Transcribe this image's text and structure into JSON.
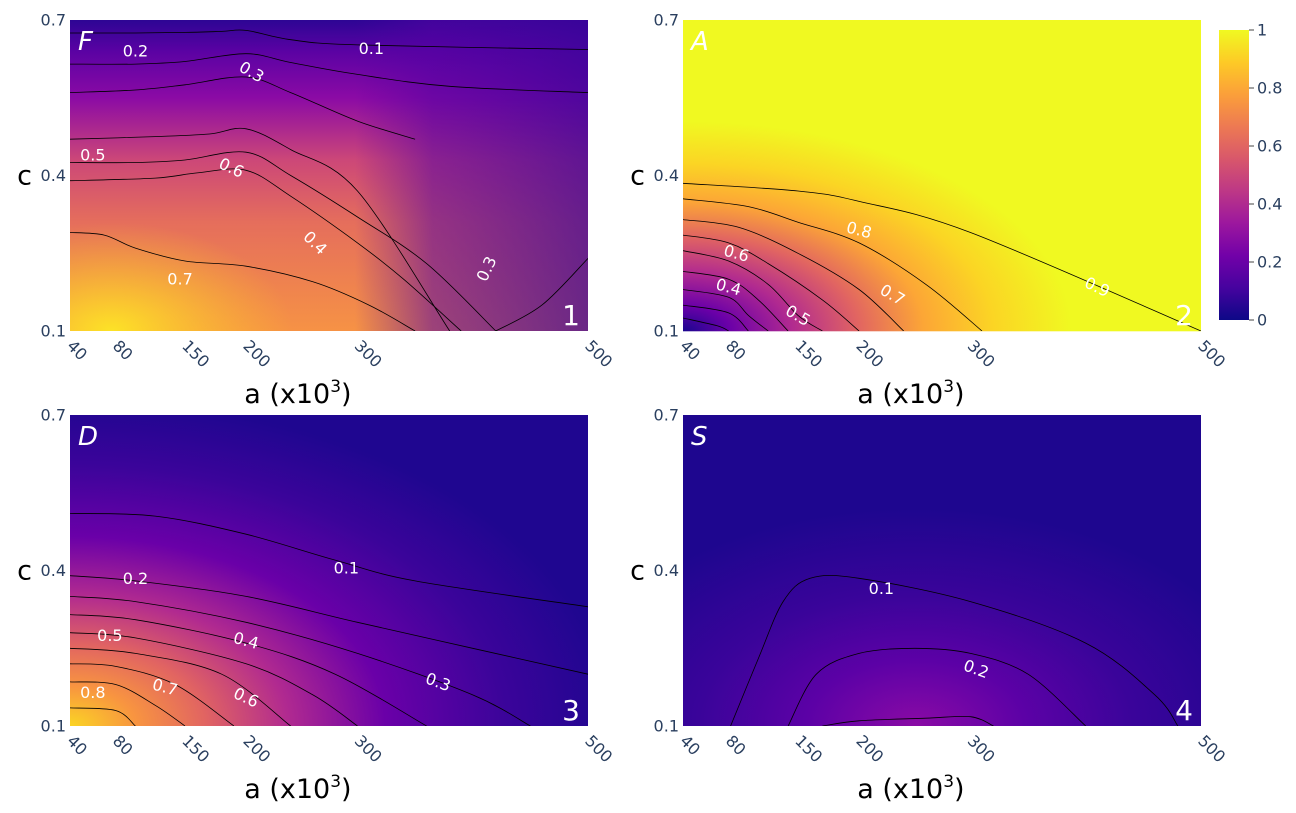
{
  "chart_data": [
    {
      "type": "heatmap",
      "corner_label": "F",
      "panel_number": "1",
      "xlabel": "a (x10",
      "xlabel_sup": "3",
      "xlabel_close": ")",
      "ylabel": "c",
      "x_ticks": [
        "40",
        "80",
        "150",
        "200",
        "300",
        "500"
      ],
      "y_ticks": [
        "0.1",
        "0.4",
        "0.7"
      ],
      "contours": [
        {
          "level": "0.1",
          "points": [
            [
              40,
              0.675
            ],
            [
              100,
              0.675
            ],
            [
              150,
              0.676
            ],
            [
              180,
              0.678
            ],
            [
              200,
              0.68
            ],
            [
              240,
              0.662
            ],
            [
              300,
              0.652
            ],
            [
              500,
              0.643
            ]
          ]
        },
        {
          "level": "0.2",
          "points": [
            [
              40,
              0.615
            ],
            [
              100,
              0.615
            ],
            [
              150,
              0.62
            ],
            [
              200,
              0.635
            ],
            [
              240,
              0.618
            ],
            [
              300,
              0.595
            ],
            [
              380,
              0.572
            ],
            [
              500,
              0.56
            ]
          ]
        },
        {
          "level": "0.3",
          "points": [
            [
              40,
              0.56
            ],
            [
              100,
              0.565
            ],
            [
              150,
              0.575
            ],
            [
              200,
              0.59
            ],
            [
              240,
              0.56
            ],
            [
              300,
              0.505
            ],
            [
              350,
              0.47
            ]
          ]
        },
        {
          "level": "0.5",
          "points": [
            [
              40,
              0.425
            ],
            [
              100,
              0.425
            ],
            [
              150,
              0.43
            ],
            [
              200,
              0.445
            ],
            [
              240,
              0.4
            ],
            [
              300,
              0.32
            ],
            [
              360,
              0.23
            ],
            [
              420,
              0.1
            ]
          ]
        },
        {
          "level": "0.6",
          "points": [
            [
              40,
              0.39
            ],
            [
              120,
              0.395
            ],
            [
              160,
              0.405
            ],
            [
              200,
              0.41
            ],
            [
              240,
              0.36
            ],
            [
              300,
              0.27
            ],
            [
              340,
              0.2
            ],
            [
              390,
              0.1
            ]
          ]
        },
        {
          "level": "0.4",
          "points": [
            [
              40,
              0.47
            ],
            [
              120,
              0.475
            ],
            [
              170,
              0.48
            ],
            [
              200,
              0.49
            ],
            [
              240,
              0.45
            ],
            [
              300,
              0.37
            ],
            [
              380,
              0.1
            ]
          ]
        },
        {
          "level": "0.7",
          "points": [
            [
              40,
              0.29
            ],
            [
              70,
              0.285
            ],
            [
              100,
              0.26
            ],
            [
              150,
              0.235
            ],
            [
              200,
              0.225
            ],
            [
              260,
              0.195
            ],
            [
              310,
              0.15
            ],
            [
              350,
              0.1
            ]
          ]
        },
        {
          "level": "0.3",
          "points": [
            [
              420,
              0.1
            ],
            [
              460,
              0.15
            ],
            [
              500,
              0.24
            ]
          ]
        }
      ],
      "contour_labels": [
        {
          "text": "0.1",
          "x": 312,
          "y": 0.645,
          "rotate": 0
        },
        {
          "text": "0.2",
          "x": 100,
          "y": 0.64,
          "rotate": 0
        },
        {
          "text": "0.3",
          "x": 205,
          "y": 0.6,
          "rotate": 30
        },
        {
          "text": "0.5",
          "x": 60,
          "y": 0.44,
          "rotate": 0
        },
        {
          "text": "0.6",
          "x": 188,
          "y": 0.415,
          "rotate": 25
        },
        {
          "text": "0.4",
          "x": 262,
          "y": 0.27,
          "rotate": 45
        },
        {
          "text": "0.7",
          "x": 145,
          "y": 0.2,
          "rotate": 0
        },
        {
          "text": "0.3",
          "x": 412,
          "y": 0.22,
          "rotate": -65
        }
      ]
    },
    {
      "type": "heatmap",
      "corner_label": "A",
      "panel_number": "2",
      "xlabel": "a (x10",
      "xlabel_sup": "3",
      "xlabel_close": ")",
      "ylabel": "c",
      "x_ticks": [
        "40",
        "80",
        "150",
        "200",
        "300",
        "500"
      ],
      "y_ticks": [
        "0.1",
        "0.4",
        "0.7"
      ],
      "colorbar": {
        "ticks": [
          "0",
          "0.2",
          "0.4",
          "0.6",
          "0.8",
          "1"
        ],
        "range": [
          0,
          1
        ]
      },
      "contours": [
        {
          "level": "0.9",
          "points": [
            [
              40,
              0.385
            ],
            [
              150,
              0.37
            ],
            [
              200,
              0.35
            ],
            [
              300,
              0.29
            ],
            [
              500,
              0.1
            ]
          ]
        },
        {
          "level": "0.8",
          "points": [
            [
              40,
              0.355
            ],
            [
              100,
              0.34
            ],
            [
              150,
              0.31
            ],
            [
              200,
              0.27
            ],
            [
              260,
              0.19
            ],
            [
              310,
              0.1
            ]
          ]
        },
        {
          "level": "0.7",
          "points": [
            [
              40,
              0.315
            ],
            [
              90,
              0.3
            ],
            [
              150,
              0.25
            ],
            [
              200,
              0.18
            ],
            [
              240,
              0.1
            ]
          ]
        },
        {
          "level": "0.6",
          "points": [
            [
              40,
              0.285
            ],
            [
              80,
              0.27
            ],
            [
              120,
              0.23
            ],
            [
              170,
              0.16
            ],
            [
              200,
              0.1
            ]
          ]
        },
        {
          "level": "0.5",
          "points": [
            [
              40,
              0.255
            ],
            [
              80,
              0.235
            ],
            [
              120,
              0.19
            ],
            [
              150,
              0.13
            ],
            [
              170,
              0.1
            ]
          ]
        },
        {
          "level": "0.4",
          "points": [
            [
              40,
              0.215
            ],
            [
              80,
              0.2
            ],
            [
              110,
              0.16
            ],
            [
              140,
              0.1
            ]
          ]
        },
        {
          "level": "0.3",
          "points": [
            [
              40,
              0.18
            ],
            [
              80,
              0.165
            ],
            [
              100,
              0.13
            ],
            [
              120,
              0.1
            ]
          ]
        },
        {
          "level": "0.2",
          "points": [
            [
              40,
              0.15
            ],
            [
              80,
              0.135
            ],
            [
              100,
              0.1
            ]
          ]
        },
        {
          "level": "0.1",
          "points": [
            [
              40,
              0.125
            ],
            [
              70,
              0.11
            ],
            [
              80,
              0.1
            ]
          ]
        }
      ],
      "contour_labels": [
        {
          "text": "0.8",
          "x": 200,
          "y": 0.295,
          "rotate": 15
        },
        {
          "text": "0.6",
          "x": 88,
          "y": 0.25,
          "rotate": 15
        },
        {
          "text": "0.4",
          "x": 80,
          "y": 0.185,
          "rotate": 15
        },
        {
          "text": "0.5",
          "x": 150,
          "y": 0.13,
          "rotate": 30
        },
        {
          "text": "0.7",
          "x": 230,
          "y": 0.17,
          "rotate": 30
        },
        {
          "text": "0.9",
          "x": 410,
          "y": 0.185,
          "rotate": 25
        }
      ]
    },
    {
      "type": "heatmap",
      "corner_label": "D",
      "panel_number": "3",
      "xlabel": "a (x10",
      "xlabel_sup": "3",
      "xlabel_close": ")",
      "ylabel": "c",
      "x_ticks": [
        "40",
        "80",
        "150",
        "200",
        "300",
        "500"
      ],
      "y_ticks": [
        "0.1",
        "0.4",
        "0.7"
      ],
      "contours": [
        {
          "level": "0.1",
          "points": [
            [
              40,
              0.51
            ],
            [
              120,
              0.505
            ],
            [
              200,
              0.47
            ],
            [
              280,
              0.42
            ],
            [
              350,
              0.38
            ],
            [
              500,
              0.33
            ]
          ]
        },
        {
          "level": "0.2",
          "points": [
            [
              40,
              0.39
            ],
            [
              100,
              0.38
            ],
            [
              200,
              0.35
            ],
            [
              300,
              0.3
            ],
            [
              400,
              0.25
            ],
            [
              500,
              0.2
            ]
          ]
        },
        {
          "level": "0.3",
          "points": [
            [
              40,
              0.35
            ],
            [
              100,
              0.34
            ],
            [
              200,
              0.3
            ],
            [
              300,
              0.24
            ],
            [
              400,
              0.16
            ],
            [
              450,
              0.1
            ]
          ]
        },
        {
          "level": "0.4",
          "points": [
            [
              40,
              0.315
            ],
            [
              100,
              0.305
            ],
            [
              200,
              0.26
            ],
            [
              280,
              0.2
            ],
            [
              360,
              0.1
            ]
          ]
        },
        {
          "level": "0.5",
          "points": [
            [
              40,
              0.28
            ],
            [
              100,
              0.27
            ],
            [
              200,
              0.22
            ],
            [
              260,
              0.16
            ],
            [
              300,
              0.1
            ]
          ]
        },
        {
          "level": "0.6",
          "points": [
            [
              40,
              0.25
            ],
            [
              100,
              0.24
            ],
            [
              180,
              0.2
            ],
            [
              240,
              0.1
            ]
          ]
        },
        {
          "level": "0.7",
          "points": [
            [
              40,
              0.22
            ],
            [
              80,
              0.215
            ],
            [
              140,
              0.18
            ],
            [
              190,
              0.1
            ]
          ]
        },
        {
          "level": "0.8",
          "points": [
            [
              40,
              0.185
            ],
            [
              80,
              0.18
            ],
            [
              120,
              0.14
            ],
            [
              150,
              0.1
            ]
          ]
        },
        {
          "level": "0.9",
          "points": [
            [
              40,
              0.135
            ],
            [
              80,
              0.13
            ],
            [
              100,
              0.1
            ]
          ]
        }
      ],
      "contour_labels": [
        {
          "text": "0.1",
          "x": 290,
          "y": 0.405,
          "rotate": 0
        },
        {
          "text": "0.2",
          "x": 100,
          "y": 0.385,
          "rotate": 0
        },
        {
          "text": "0.5",
          "x": 75,
          "y": 0.275,
          "rotate": 0
        },
        {
          "text": "0.4",
          "x": 200,
          "y": 0.265,
          "rotate": 15
        },
        {
          "text": "0.3",
          "x": 370,
          "y": 0.185,
          "rotate": 20
        },
        {
          "text": "0.8",
          "x": 60,
          "y": 0.165,
          "rotate": 0
        },
        {
          "text": "0.7",
          "x": 130,
          "y": 0.175,
          "rotate": 15
        },
        {
          "text": "0.6",
          "x": 200,
          "y": 0.155,
          "rotate": 25
        }
      ]
    },
    {
      "type": "heatmap",
      "corner_label": "S",
      "panel_number": "4",
      "xlabel": "a (x10",
      "xlabel_sup": "3",
      "xlabel_close": ")",
      "ylabel": "c",
      "x_ticks": [
        "40",
        "80",
        "150",
        "200",
        "300",
        "500"
      ],
      "y_ticks": [
        "0.1",
        "0.4",
        "0.7"
      ],
      "contours": [
        {
          "level": "0.1",
          "points": [
            [
              82,
              0.1
            ],
            [
              110,
              0.23
            ],
            [
              135,
              0.34
            ],
            [
              160,
              0.385
            ],
            [
              200,
              0.385
            ],
            [
              300,
              0.34
            ],
            [
              400,
              0.26
            ],
            [
              460,
              0.16
            ],
            [
              480,
              0.1
            ]
          ]
        },
        {
          "level": "0.2",
          "points": [
            [
              140,
              0.1
            ],
            [
              165,
              0.2
            ],
            [
              200,
              0.24
            ],
            [
              250,
              0.25
            ],
            [
              300,
              0.24
            ],
            [
              350,
              0.2
            ],
            [
              400,
              0.1
            ]
          ]
        },
        {
          "level": "0.3",
          "points": [
            [
              170,
              0.1
            ],
            [
              200,
              0.11
            ],
            [
              260,
              0.115
            ],
            [
              300,
              0.118
            ],
            [
              320,
              0.1
            ]
          ]
        }
      ],
      "contour_labels": [
        {
          "text": "0.1",
          "x": 220,
          "y": 0.365,
          "rotate": 0
        },
        {
          "text": "0.2",
          "x": 305,
          "y": 0.21,
          "rotate": 20
        }
      ]
    }
  ]
}
